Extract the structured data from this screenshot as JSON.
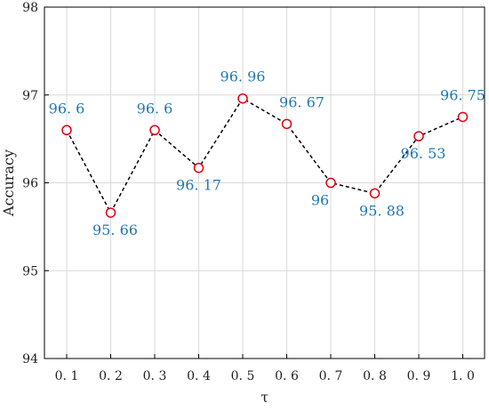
{
  "chart_data": {
    "type": "line",
    "title": "",
    "xlabel": "τ",
    "ylabel": "Accuracy",
    "x_tick_labels": [
      "0. 1",
      "0. 2",
      "0. 3",
      "0. 4",
      "0. 5",
      "0. 6",
      "0. 7",
      "0. 8",
      "0. 9",
      "1. 0"
    ],
    "y_tick_labels": [
      "94",
      "95",
      "96",
      "97",
      "98"
    ],
    "y_ticks": [
      94,
      95,
      96,
      97,
      98
    ],
    "ylim": [
      94,
      98
    ],
    "grid": true,
    "series": [
      {
        "x": [
          0.1,
          0.2,
          0.3,
          0.4,
          0.5,
          0.6,
          0.7,
          0.8,
          0.9,
          1.0
        ],
        "values": [
          96.6,
          95.66,
          96.6,
          96.17,
          96.96,
          96.67,
          96.0,
          95.88,
          96.53,
          96.75
        ],
        "labels": [
          "96. 6",
          "95. 66",
          "96. 6",
          "96. 17",
          "96. 96",
          "96. 67",
          "96",
          "95. 88",
          "96. 53",
          "96. 75"
        ]
      }
    ],
    "colors": {
      "line": "#000000",
      "marker": "#e3000f",
      "data_label": "#1f77b4",
      "grid": "#d9d9d9"
    }
  }
}
